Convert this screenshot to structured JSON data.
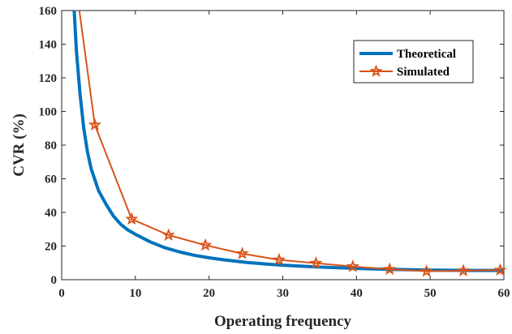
{
  "chart_data": {
    "type": "line",
    "title": "",
    "xlabel": "Operating frequency",
    "ylabel": "CVR (%)",
    "xlim": [
      0,
      60
    ],
    "ylim": [
      0,
      160
    ],
    "xticks": [
      0,
      10,
      20,
      30,
      40,
      50,
      60
    ],
    "yticks": [
      0,
      20,
      40,
      60,
      80,
      100,
      120,
      140,
      160
    ],
    "grid": false,
    "legend_position": "top-right",
    "series": [
      {
        "name": "Theoretical",
        "color": "#0072BD",
        "marker": "none",
        "x": [
          1.7,
          2,
          2.5,
          3,
          3.5,
          4,
          5,
          6,
          7,
          8,
          9,
          10,
          12,
          14,
          16,
          18,
          20,
          22,
          25,
          28,
          30,
          35,
          40,
          45,
          50,
          55,
          60
        ],
        "y": [
          160,
          136,
          110,
          90,
          76,
          66,
          53,
          45,
          38,
          33,
          29.5,
          27,
          22.5,
          19,
          16.5,
          14.5,
          13,
          11.8,
          10.3,
          9.2,
          8.6,
          7.5,
          6.7,
          6.1,
          5.7,
          5.5,
          5.5
        ]
      },
      {
        "name": "Simulated",
        "color": "#D95319",
        "marker": "star",
        "x": [
          2.4,
          4.5,
          9.5,
          14.5,
          19.5,
          24.5,
          29.5,
          34.5,
          39.5,
          44.5,
          49.5,
          54.5,
          59.5
        ],
        "y": [
          160,
          92,
          36,
          26.5,
          20.5,
          15.5,
          11.8,
          9.8,
          7.8,
          6.2,
          5.0,
          5.3,
          5.7
        ],
        "marked_points": 12
      }
    ]
  }
}
